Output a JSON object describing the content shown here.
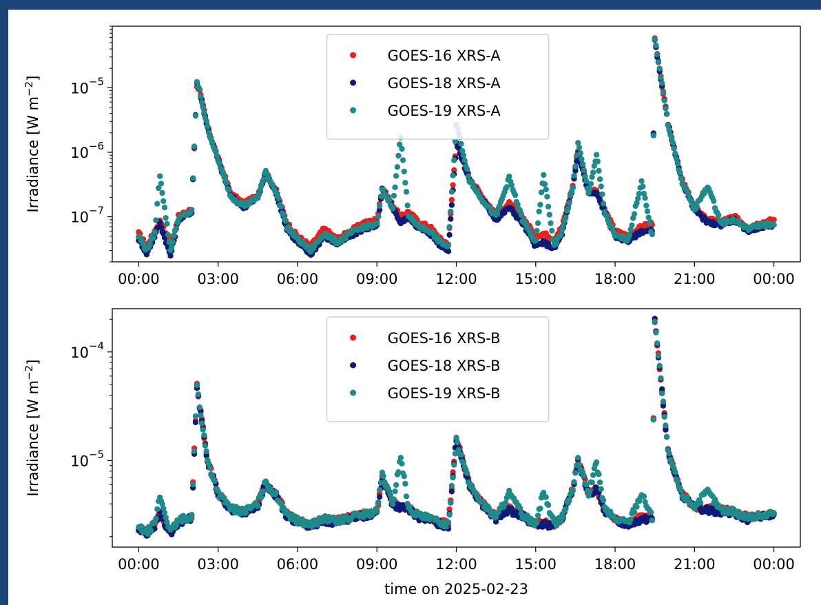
{
  "chart_data": [
    {
      "type": "scatter",
      "ylabel_main": "Irradiance [W m",
      "ylabel_exp": "−2",
      "ylabel_close": "]",
      "xlabel": "",
      "yscale": "log",
      "ylim": [
        2e-08,
        9e-05
      ],
      "xlim_hours": [
        -1.0,
        25.0
      ],
      "xticks": [
        "00:00",
        "03:00",
        "06:00",
        "09:00",
        "12:00",
        "15:00",
        "18:00",
        "21:00",
        "00:00"
      ],
      "yticks": [
        {
          "base": "10",
          "exp": "−7",
          "value": 1e-07
        },
        {
          "base": "10",
          "exp": "−6",
          "value": 1e-06
        },
        {
          "base": "10",
          "exp": "−5",
          "value": 1e-05
        }
      ],
      "grid": false,
      "legend_position": "top-center",
      "series": [
        {
          "name": "GOES-16 XRS-A",
          "color": "#e8201e",
          "x": [
            0.0,
            0.3,
            0.6,
            0.8,
            1.2,
            1.5,
            2.0,
            2.2,
            2.3,
            2.6,
            3.0,
            3.5,
            4.0,
            4.5,
            4.8,
            5.2,
            5.6,
            6.0,
            6.5,
            7.0,
            7.5,
            8.0,
            8.5,
            9.0,
            9.2,
            9.6,
            9.9,
            10.2,
            10.6,
            11.0,
            11.4,
            11.7,
            12.0,
            12.5,
            13.0,
            13.5,
            14.0,
            14.5,
            15.0,
            15.3,
            15.7,
            16.0,
            16.4,
            16.6,
            17.0,
            17.3,
            17.6,
            18.0,
            18.5,
            19.0,
            19.4,
            19.5,
            20.0,
            20.5,
            21.0,
            21.5,
            22.0,
            22.5,
            23.0,
            23.5,
            24.0
          ],
          "values": [
            5.5e-08,
            3.5e-08,
            6e-08,
            9e-08,
            3.5e-08,
            1e-07,
            1.3e-07,
            1.1e-05,
            9e-06,
            2.5e-06,
            8e-07,
            2.2e-07,
            1.6e-07,
            2.2e-07,
            4.8e-07,
            2.5e-07,
            8e-08,
            5e-08,
            3.5e-08,
            6.5e-08,
            4.5e-08,
            6e-08,
            8e-08,
            9e-08,
            2.8e-07,
            1.5e-07,
            1e-07,
            1.2e-07,
            8e-08,
            7e-08,
            4.5e-08,
            3.8e-08,
            1.5e-06,
            4e-07,
            2e-07,
            1.1e-07,
            1.6e-07,
            1e-07,
            5e-08,
            5.5e-08,
            4.5e-08,
            7e-08,
            3e-07,
            1.1e-06,
            2.5e-07,
            2.5e-07,
            1.3e-07,
            6e-08,
            5e-08,
            7e-08,
            8e-08,
            5.5e-05,
            2.8e-06,
            4e-07,
            1.4e-07,
            9e-08,
            8.5e-08,
            1e-07,
            7e-08,
            8e-08,
            9e-08
          ]
        },
        {
          "name": "GOES-18 XRS-A",
          "color": "#0d1a78",
          "x": [
            0.0,
            0.3,
            0.6,
            0.8,
            1.2,
            1.5,
            2.0,
            2.2,
            2.3,
            2.6,
            3.0,
            3.5,
            4.0,
            4.5,
            4.8,
            5.2,
            5.6,
            6.0,
            6.5,
            7.0,
            7.5,
            8.0,
            8.5,
            9.0,
            9.2,
            9.6,
            9.9,
            10.2,
            10.6,
            11.0,
            11.4,
            11.7,
            12.0,
            12.5,
            13.0,
            13.5,
            14.0,
            14.5,
            15.0,
            15.3,
            15.7,
            16.0,
            16.4,
            16.6,
            17.0,
            17.3,
            17.6,
            18.0,
            18.5,
            19.0,
            19.4,
            19.5,
            20.0,
            20.5,
            21.0,
            21.5,
            22.0,
            22.5,
            23.0,
            23.5,
            24.0
          ],
          "values": [
            4.5e-08,
            2.7e-08,
            5e-08,
            8e-08,
            2.5e-08,
            9e-08,
            1.2e-07,
            1.2e-05,
            9e-06,
            2.4e-06,
            7.5e-07,
            2e-07,
            1.4e-07,
            2e-07,
            4.7e-07,
            2.3e-07,
            6.5e-08,
            4e-08,
            2.6e-08,
            5e-08,
            3.8e-08,
            5e-08,
            6.5e-08,
            7e-08,
            2.6e-07,
            1.4e-07,
            8e-08,
            1e-07,
            6.5e-08,
            5.5e-08,
            3.6e-08,
            3.1e-08,
            1.4e-06,
            3.7e-07,
            1.8e-07,
            9e-08,
            1.4e-07,
            8e-08,
            3.5e-08,
            4e-08,
            3.2e-08,
            5.5e-08,
            2.8e-07,
            1e-06,
            2.3e-07,
            2.3e-07,
            1.2e-07,
            5e-08,
            4.2e-08,
            6e-08,
            6e-08,
            5.5e-05,
            2.8e-06,
            3.8e-07,
            1.3e-07,
            8e-08,
            7.5e-08,
            9e-08,
            6e-08,
            7e-08,
            7.5e-08
          ]
        },
        {
          "name": "GOES-19 XRS-A",
          "color": "#1f8a8a",
          "x": [
            0.0,
            0.3,
            0.6,
            0.8,
            1.2,
            1.5,
            2.0,
            2.2,
            2.3,
            2.6,
            3.0,
            3.5,
            4.0,
            4.5,
            4.8,
            5.2,
            5.6,
            6.0,
            6.5,
            7.0,
            7.5,
            8.0,
            8.5,
            9.0,
            9.2,
            9.6,
            9.9,
            10.2,
            10.6,
            11.0,
            11.4,
            11.7,
            12.0,
            12.5,
            13.0,
            13.5,
            14.0,
            14.5,
            15.0,
            15.3,
            15.7,
            16.0,
            16.4,
            16.6,
            17.0,
            17.3,
            17.6,
            18.0,
            18.5,
            19.0,
            19.4,
            19.5,
            20.0,
            20.5,
            21.0,
            21.5,
            22.0,
            22.5,
            23.0,
            23.5,
            24.0
          ],
          "values": [
            5e-08,
            3e-08,
            5.5e-08,
            4.5e-07,
            3e-08,
            9.5e-08,
            1.2e-07,
            1.2e-05,
            9e-06,
            2.4e-06,
            7.5e-07,
            2e-07,
            1.5e-07,
            2e-07,
            5e-07,
            2.4e-07,
            7e-08,
            4.5e-08,
            3e-08,
            5.5e-08,
            4e-08,
            5.5e-08,
            7e-08,
            7.5e-08,
            2.7e-07,
            1.4e-07,
            1.8e-06,
            1e-07,
            7e-08,
            6e-08,
            4e-08,
            3.5e-08,
            2.8e-06,
            3.7e-07,
            1.8e-07,
            1e-07,
            4e-07,
            9e-08,
            4e-08,
            4.5e-07,
            3.5e-08,
            6e-08,
            2.8e-07,
            1.4e-06,
            2.3e-07,
            9e-07,
            1.2e-07,
            5e-08,
            4.5e-08,
            3.5e-07,
            5e-08,
            6e-05,
            2.8e-06,
            3.8e-07,
            1.3e-07,
            3e-07,
            8e-08,
            9e-08,
            6.5e-08,
            7.5e-08,
            7.5e-08
          ]
        }
      ]
    },
    {
      "type": "scatter",
      "ylabel_main": "Irradiance [W m",
      "ylabel_exp": "−2",
      "ylabel_close": "]",
      "xlabel": "time on 2025-02-23",
      "yscale": "log",
      "ylim": [
        1.6e-06,
        0.00025
      ],
      "xlim_hours": [
        -1.0,
        25.0
      ],
      "xticks": [
        "00:00",
        "03:00",
        "06:00",
        "09:00",
        "12:00",
        "15:00",
        "18:00",
        "21:00",
        "00:00"
      ],
      "yticks": [
        {
          "base": "10",
          "exp": "−5",
          "value": 1e-05
        },
        {
          "base": "10",
          "exp": "−4",
          "value": 0.0001
        }
      ],
      "grid": false,
      "legend_position": "top-center",
      "series": [
        {
          "name": "GOES-16 XRS-B",
          "color": "#e8201e",
          "x": [
            0.0,
            0.3,
            0.6,
            0.8,
            1.2,
            1.5,
            2.0,
            2.2,
            2.3,
            2.6,
            3.0,
            3.5,
            4.0,
            4.5,
            4.8,
            5.2,
            5.6,
            6.0,
            6.5,
            7.0,
            7.5,
            8.0,
            8.5,
            9.0,
            9.2,
            9.6,
            9.9,
            10.2,
            10.6,
            11.0,
            11.4,
            11.7,
            12.0,
            12.5,
            13.0,
            13.5,
            14.0,
            14.5,
            15.0,
            15.3,
            15.7,
            16.0,
            16.4,
            16.6,
            17.0,
            17.3,
            17.6,
            18.0,
            18.5,
            19.0,
            19.4,
            19.5,
            20.0,
            20.5,
            21.0,
            21.5,
            22.0,
            22.5,
            23.0,
            23.5,
            24.0
          ],
          "values": [
            2.4e-06,
            2.2e-06,
            2.6e-06,
            3.3e-06,
            2.2e-06,
            2.8e-06,
            3.1e-06,
            4.8e-05,
            3.2e-05,
            1e-05,
            5e-06,
            3.6e-06,
            3.4e-06,
            4e-06,
            6.2e-06,
            4.8e-06,
            3.2e-06,
            2.8e-06,
            2.6e-06,
            2.9e-06,
            2.8e-06,
            3e-06,
            3.2e-06,
            3.4e-06,
            7e-06,
            4e-06,
            3.8e-06,
            3.6e-06,
            3.1e-06,
            2.9e-06,
            2.7e-06,
            2.6e-06,
            1.6e-05,
            6e-06,
            4e-06,
            3e-06,
            3.6e-06,
            3.2e-06,
            2.6e-06,
            2.7e-06,
            2.6e-06,
            3e-06,
            5.5e-06,
            1e-05,
            5e-06,
            5.5e-06,
            3.6e-06,
            2.9e-06,
            2.7e-06,
            3e-06,
            3e-06,
            0.0002,
            1.2e-05,
            5e-06,
            3.8e-06,
            3.6e-06,
            3.5e-06,
            3.4e-06,
            3e-06,
            3.1e-06,
            3.3e-06
          ]
        },
        {
          "name": "GOES-18 XRS-B",
          "color": "#0d1a78",
          "x": [
            0.0,
            0.3,
            0.6,
            0.8,
            1.2,
            1.5,
            2.0,
            2.2,
            2.3,
            2.6,
            3.0,
            3.5,
            4.0,
            4.5,
            4.8,
            5.2,
            5.6,
            6.0,
            6.5,
            7.0,
            7.5,
            8.0,
            8.5,
            9.0,
            9.2,
            9.6,
            9.9,
            10.2,
            10.6,
            11.0,
            11.4,
            11.7,
            12.0,
            12.5,
            13.0,
            13.5,
            14.0,
            14.5,
            15.0,
            15.3,
            15.7,
            16.0,
            16.4,
            16.6,
            17.0,
            17.3,
            17.6,
            18.0,
            18.5,
            19.0,
            19.4,
            19.5,
            20.0,
            20.5,
            21.0,
            21.5,
            22.0,
            22.5,
            23.0,
            23.5,
            24.0
          ],
          "values": [
            2.3e-06,
            2.1e-06,
            2.5e-06,
            3.2e-06,
            2.1e-06,
            2.7e-06,
            3e-06,
            4.8e-05,
            3.2e-05,
            1e-05,
            5e-06,
            3.5e-06,
            3.3e-06,
            3.9e-06,
            6.1e-06,
            4.7e-06,
            3.1e-06,
            2.7e-06,
            2.5e-06,
            2.8e-06,
            2.7e-06,
            2.9e-06,
            3.1e-06,
            3.3e-06,
            6.9e-06,
            3.9e-06,
            3.7e-06,
            3.5e-06,
            3e-06,
            2.8e-06,
            2.6e-06,
            2.5e-06,
            1.6e-05,
            5.9e-06,
            3.9e-06,
            2.9e-06,
            3.5e-06,
            3.1e-06,
            2.5e-06,
            2.6e-06,
            2.5e-06,
            2.9e-06,
            5.4e-06,
            1e-05,
            4.9e-06,
            5.4e-06,
            3.5e-06,
            2.8e-06,
            2.6e-06,
            2.9e-06,
            2.9e-06,
            0.0002,
            1.2e-05,
            4.9e-06,
            3.7e-06,
            3.5e-06,
            3.4e-06,
            3.3e-06,
            2.9e-06,
            3e-06,
            3.2e-06
          ]
        },
        {
          "name": "GOES-19 XRS-B",
          "color": "#1f8a8a",
          "x": [
            0.0,
            0.3,
            0.6,
            0.8,
            1.2,
            1.5,
            2.0,
            2.2,
            2.3,
            2.6,
            3.0,
            3.5,
            4.0,
            4.5,
            4.8,
            5.2,
            5.6,
            6.0,
            6.5,
            7.0,
            7.5,
            8.0,
            8.5,
            9.0,
            9.2,
            9.6,
            9.9,
            10.2,
            10.6,
            11.0,
            11.4,
            11.7,
            12.0,
            12.5,
            13.0,
            13.5,
            14.0,
            14.5,
            15.0,
            15.3,
            15.7,
            16.0,
            16.4,
            16.6,
            17.0,
            17.3,
            17.6,
            18.0,
            18.5,
            19.0,
            19.4,
            19.5,
            20.0,
            20.5,
            21.0,
            21.5,
            22.0,
            22.5,
            23.0,
            23.5,
            24.0
          ],
          "values": [
            2.4e-06,
            2.2e-06,
            2.6e-06,
            4.7e-06,
            2.2e-06,
            2.8e-06,
            3.1e-06,
            4.9e-05,
            3.2e-05,
            1e-05,
            5e-06,
            3.6e-06,
            3.4e-06,
            4e-06,
            6.3e-06,
            4.8e-06,
            3.2e-06,
            2.8e-06,
            2.6e-06,
            2.9e-06,
            2.8e-06,
            3e-06,
            3.2e-06,
            3.4e-06,
            7.5e-06,
            4e-06,
            1.1e-05,
            3.6e-06,
            3.1e-06,
            2.9e-06,
            2.7e-06,
            2.6e-06,
            1.6e-05,
            6e-06,
            4e-06,
            3e-06,
            5e-06,
            3.2e-06,
            2.6e-06,
            5.2e-06,
            2.6e-06,
            3e-06,
            5.5e-06,
            1e-05,
            5e-06,
            9.5e-06,
            3.6e-06,
            2.9e-06,
            2.7e-06,
            5e-06,
            3e-06,
            0.0002,
            1.2e-05,
            5e-06,
            3.8e-06,
            5.2e-06,
            3.5e-06,
            3.4e-06,
            3e-06,
            3.1e-06,
            3.3e-06
          ]
        }
      ]
    }
  ]
}
